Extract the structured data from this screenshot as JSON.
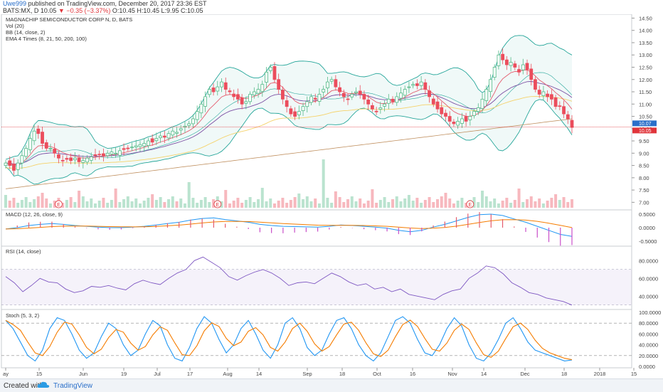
{
  "header": {
    "user": "Uwe999",
    "published": "published on TradingView.com, December 20, 2017 23:36 EST",
    "symbol": "BATS:MX, D",
    "last": "10.05",
    "change": "−0.35 (−3.37%)",
    "ohlc": "O:10.45 H:10.45 L:9.95 C:10.05"
  },
  "main_legend": [
    "MAGNACHIP SEMICONDUCTOR CORP N, D, BATS",
    "Vol (20)",
    "BB (14, close, 2)",
    "EMA 4 Times (8, 21, 50, 200, 100)"
  ],
  "macd_legend": "MACD (12, 26, close, 9)",
  "rsi_legend": "RSI (14, close)",
  "stoch_legend": "Stoch (5, 3, 2)",
  "price_badges": {
    "upper": "10.07",
    "lower": "10.05"
  },
  "earnings_marker": "E",
  "footer": {
    "created": "Created with",
    "brand": "TradingView"
  },
  "colors": {
    "up": "#53b987",
    "down": "#eb4d5c",
    "bb": "#26a69a",
    "ema8": "#e45b6d",
    "ema21": "#7b4fa3",
    "ema50": "#f5d26a",
    "ema200": "#c09060",
    "ema100": "#a07040",
    "macd": "#2196f3",
    "signal": "#f57c00",
    "rsi": "#7e57c2",
    "stoch_k": "#2196f3",
    "stoch_d": "#f57c00"
  },
  "chart_data": [
    {
      "type": "candlestick",
      "title": "MAGNACHIP SEMICONDUCTOR CORP N, D, BATS",
      "x_ticks": [
        "ay",
        "15",
        "Jun",
        "19",
        "Jul",
        "17",
        "Aug",
        "14",
        "Sep",
        "18",
        "Oct",
        "16",
        "Nov",
        "14",
        "Dec",
        "18",
        "2018",
        "15"
      ],
      "y_ticks": [
        7.0,
        7.5,
        8.0,
        8.5,
        9.0,
        9.5,
        10.0,
        10.5,
        11.0,
        11.5,
        12.0,
        12.5,
        13.0,
        13.5,
        14.0,
        14.5
      ],
      "ylim": [
        6.75,
        14.6
      ],
      "close": [
        8.6,
        8.5,
        8.3,
        8.6,
        8.9,
        9.2,
        9.6,
        9.9,
        9.8,
        9.4,
        9.2,
        9.2,
        9.0,
        8.8,
        8.7,
        8.75,
        8.7,
        8.8,
        8.65,
        8.7,
        8.8,
        8.85,
        8.9,
        8.95,
        8.9,
        9.0,
        9.05,
        9.0,
        9.1,
        9.15,
        9.2,
        9.25,
        9.3,
        9.35,
        9.4,
        9.5,
        9.45,
        9.6,
        9.7,
        9.65,
        9.8,
        9.9,
        9.85,
        10.0,
        10.1,
        10.2,
        10.4,
        10.7,
        11.0,
        11.3,
        11.6,
        11.5,
        11.7,
        11.9,
        11.6,
        11.5,
        11.3,
        11.2,
        11.0,
        11.1,
        11.4,
        11.5,
        11.6,
        11.8,
        12.3,
        12.5,
        12.0,
        11.6,
        11.2,
        10.9,
        10.6,
        10.5,
        10.7,
        10.9,
        11.1,
        11.3,
        11.2,
        11.4,
        11.6,
        11.9,
        12.0,
        11.7,
        11.5,
        11.3,
        11.2,
        11.4,
        11.5,
        11.4,
        11.2,
        11.0,
        10.8,
        10.7,
        10.85,
        11.0,
        11.2,
        11.1,
        11.3,
        11.45,
        11.6,
        11.7,
        11.8,
        11.75,
        11.9,
        11.6,
        11.3,
        11.0,
        10.8,
        10.6,
        10.5,
        10.3,
        10.2,
        10.3,
        10.4,
        10.3,
        10.5,
        10.7,
        10.85,
        11.2,
        11.6,
        12.0,
        12.5,
        13.0,
        12.8,
        12.6,
        12.7,
        12.5,
        12.3,
        12.6,
        12.4,
        12.0,
        11.6,
        11.4,
        11.5,
        11.3,
        11.2,
        10.9,
        10.9,
        10.6,
        10.4,
        10.05
      ],
      "volume_scale_tick": "7.00"
    },
    {
      "type": "line",
      "title": "MACD (12, 26, close, 9)",
      "y_ticks": [
        "0.5000",
        "0.0000",
        "-0.5000"
      ],
      "series": [
        {
          "name": "MACD"
        },
        {
          "name": "Signal"
        },
        {
          "name": "Histogram"
        }
      ],
      "macd": [
        -0.05,
        0.0,
        0.08,
        0.12,
        0.15,
        0.12,
        0.08,
        0.05,
        0.02,
        0.0,
        0.0,
        0.02,
        0.05,
        0.1,
        0.15,
        0.2,
        0.28,
        0.34,
        0.36,
        0.3,
        0.25,
        0.2,
        0.12,
        0.08,
        0.05,
        0.04,
        0.03,
        0.02,
        0.05,
        0.1,
        0.08,
        0.05,
        0.02,
        -0.02,
        -0.1,
        -0.15,
        -0.1,
        0.02,
        0.12,
        0.25,
        0.38,
        0.48,
        0.5,
        0.45,
        0.32,
        0.2,
        0.05,
        -0.1,
        -0.25,
        -0.32
      ]
    },
    {
      "type": "line",
      "title": "RSI (14, close)",
      "y_ticks": [
        "80.0000",
        "60.0000",
        "40.0000"
      ],
      "band": [
        30,
        70
      ],
      "rsi": [
        62,
        55,
        45,
        52,
        60,
        56,
        55,
        48,
        44,
        46,
        51,
        50,
        52,
        49,
        47,
        54,
        58,
        55,
        53,
        60,
        66,
        70,
        80,
        84,
        78,
        72,
        62,
        58,
        63,
        67,
        70,
        66,
        60,
        52,
        55,
        56,
        54,
        60,
        66,
        62,
        56,
        52,
        54,
        48,
        50,
        45,
        48,
        42,
        40,
        38,
        36,
        42,
        46,
        48,
        60,
        66,
        74,
        72,
        65,
        55,
        50,
        44,
        42,
        38,
        36,
        34,
        30
      ]
    },
    {
      "type": "line",
      "title": "Stoch (5, 3, 2)",
      "y_ticks": [
        "100.0000",
        "80.0000",
        "60.0000",
        "40.0000",
        "20.0000",
        "0.0000"
      ],
      "guides": [
        80,
        20
      ],
      "k": [
        85,
        70,
        45,
        20,
        10,
        30,
        70,
        90,
        85,
        60,
        30,
        15,
        25,
        55,
        80,
        70,
        40,
        20,
        30,
        60,
        85,
        75,
        40,
        15,
        10,
        35,
        70,
        92,
        80,
        50,
        25,
        40,
        70,
        85,
        60,
        30,
        15,
        40,
        80,
        90,
        70,
        35,
        20,
        30,
        60,
        85,
        90,
        70,
        40,
        20,
        10,
        25,
        55,
        85,
        92,
        80,
        50,
        25,
        20,
        40,
        70,
        90,
        75,
        40,
        15,
        10,
        25,
        50,
        80,
        90,
        70,
        45,
        30,
        25,
        20,
        15,
        10,
        12
      ]
    }
  ]
}
